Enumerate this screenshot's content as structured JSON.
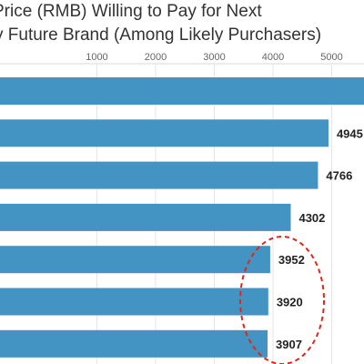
{
  "chart_data": {
    "type": "bar",
    "orientation": "horizontal",
    "title_lines": [
      "Price (RMB) Willing to Pay for Next",
      "y Future Brand (Among Likely Purchasers)"
    ],
    "xlabel": "",
    "ylabel": "",
    "xlim": [
      -650,
      5550
    ],
    "x_ticks": [
      1000,
      2000,
      3000,
      4000,
      5000
    ],
    "x_tick_labels": [
      "1000",
      "2000",
      "3000",
      "4000",
      "5000"
    ],
    "grid": true,
    "bar_color": "#4393c3",
    "annotation_color": "#e0261b",
    "categories": [
      "",
      "",
      "",
      "",
      "",
      "",
      ""
    ],
    "values": [
      5600,
      4945,
      4766,
      4302,
      3952,
      3920,
      3907
    ],
    "value_labels": [
      "",
      "4945",
      "4766",
      "4302",
      "3952",
      "3920",
      "3907"
    ],
    "highlighted_values": [
      3952,
      3920,
      3907
    ]
  }
}
